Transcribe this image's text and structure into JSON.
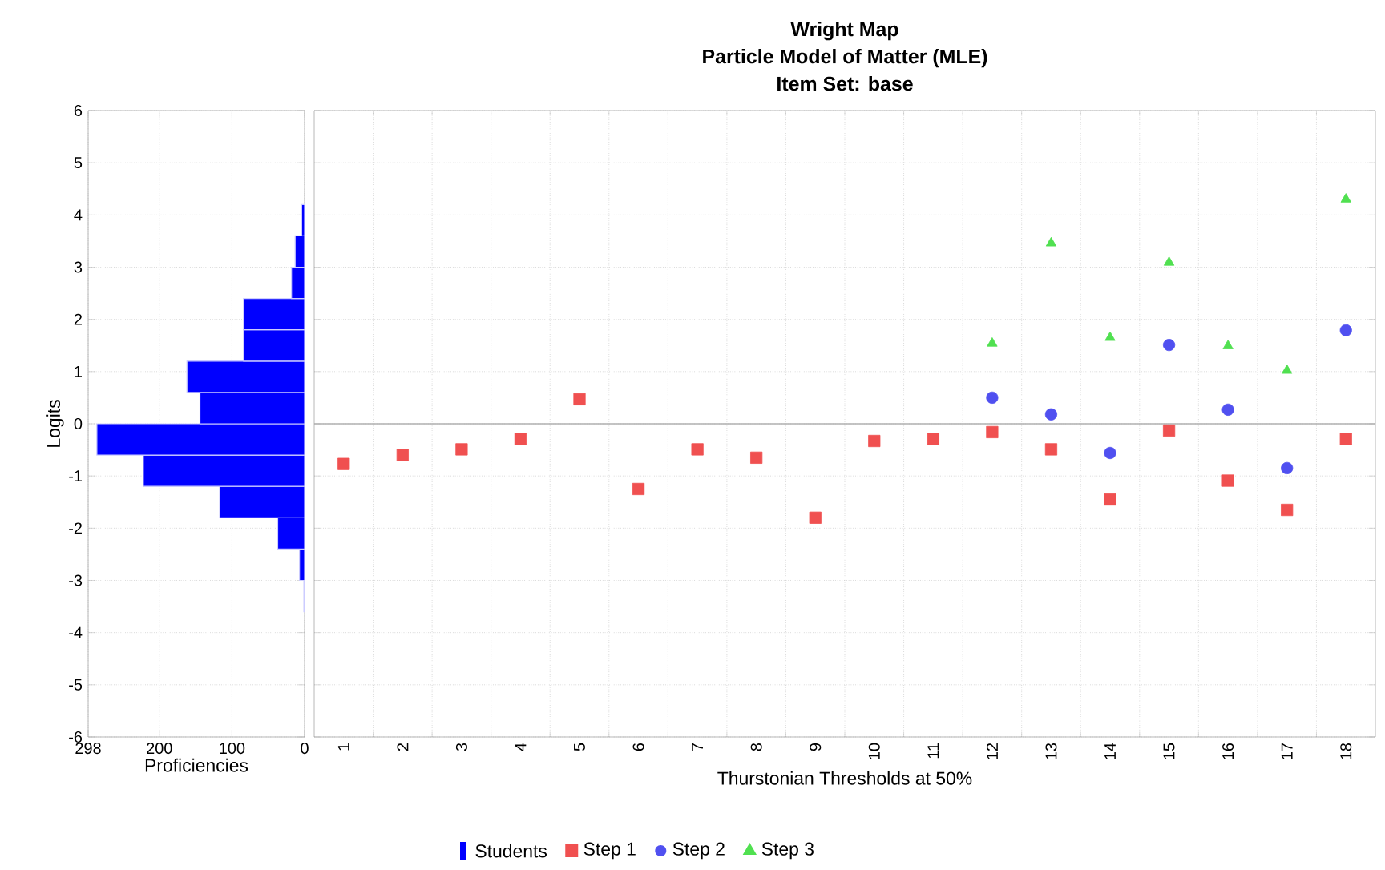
{
  "chart_data": [
    {
      "type": "histogram",
      "orientation": "horizontal",
      "xlabel": "Proficiencies",
      "ylabel": "Logits",
      "bins": [
        -3.6,
        -3.0,
        -2.4,
        -1.8,
        -1.2,
        -0.6,
        0,
        0.6,
        1.2,
        1.8,
        2.4,
        3.0,
        3.6,
        4.2
      ],
      "series": [
        {
          "name": "Students",
          "color": "#0000ff",
          "values": [
            1,
            7,
            37,
            117,
            222,
            286,
            144,
            162,
            84,
            84,
            18,
            13,
            4
          ]
        }
      ],
      "xlim": [
        298,
        0
      ],
      "xticks": [
        298,
        200,
        100,
        0
      ],
      "ylim": [
        -6,
        6
      ],
      "yticks": [
        -6,
        -5,
        -4,
        -3,
        -2,
        -1,
        0,
        1,
        2,
        3,
        4,
        5,
        6
      ],
      "grid": true,
      "legend": "bottom"
    },
    {
      "type": "scatter",
      "xlabel": "Thurstonian Thresholds at 50%",
      "title": "Wright Map",
      "subtitle": "Particle Model of Matter (MLE)",
      "annotations": [
        "Item Set: base"
      ],
      "categories": [
        "1",
        "2",
        "3",
        "4",
        "5",
        "6",
        "7",
        "8",
        "9",
        "10",
        "11",
        "12",
        "13",
        "14",
        "15",
        "16",
        "17",
        "18"
      ],
      "series": [
        {
          "name": "Step 1",
          "color": "#f05050",
          "marker": "square",
          "values": [
            -0.77,
            -0.6,
            -0.49,
            -0.29,
            0.47,
            -1.25,
            -0.49,
            -0.65,
            -1.8,
            -0.33,
            -0.29,
            -0.16,
            -0.49,
            -1.45,
            -0.13,
            -1.09,
            -1.65,
            -0.29
          ]
        },
        {
          "name": "Step 2",
          "color": "#5050f0",
          "marker": "circle",
          "values": [
            null,
            null,
            null,
            null,
            null,
            null,
            null,
            null,
            null,
            null,
            null,
            0.5,
            0.18,
            -0.56,
            1.51,
            0.27,
            -0.85,
            1.79
          ]
        },
        {
          "name": "Step 3",
          "color": "#50e050",
          "marker": "triangle",
          "values": [
            null,
            null,
            null,
            null,
            null,
            null,
            null,
            null,
            null,
            null,
            null,
            1.54,
            3.46,
            1.65,
            3.09,
            1.49,
            1.02,
            4.3
          ]
        }
      ],
      "ylim": [
        -6,
        6
      ],
      "yticks": [
        -6,
        -5,
        -4,
        -3,
        -2,
        -1,
        0,
        1,
        2,
        3,
        4,
        5,
        6
      ],
      "tick_labels": "x",
      "ref_lines": [
        {
          "axis": "y",
          "value": 0,
          "color": "#b0b0b0"
        }
      ],
      "grid": true,
      "legend": "bottom"
    }
  ]
}
